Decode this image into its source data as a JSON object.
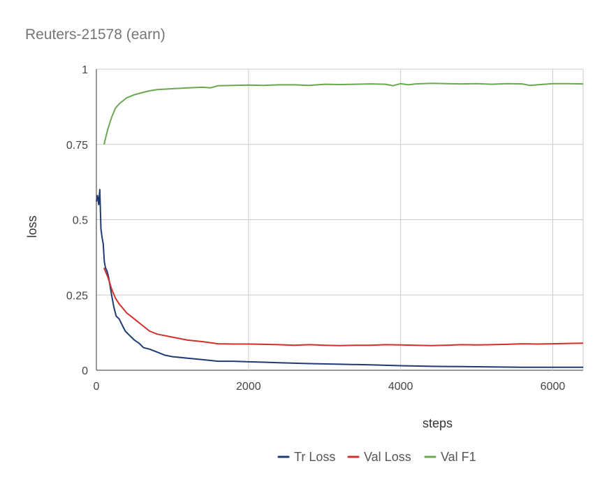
{
  "chart_data": {
    "type": "line",
    "title": "Reuters-21578 (earn)",
    "xlabel": "steps",
    "ylabel": "loss",
    "xlim": [
      0,
      6400
    ],
    "ylim": [
      0,
      1
    ],
    "x_ticks": [
      0,
      2000,
      4000,
      6000
    ],
    "x_tick_labels": [
      "0",
      "2000",
      "4000",
      "6000"
    ],
    "y_ticks": [
      0,
      0.25,
      0.5,
      0.75,
      1
    ],
    "y_tick_labels": [
      "0",
      "0.25",
      "0.5",
      "0.75",
      "1"
    ],
    "grid": true,
    "legend_position": "bottom",
    "series": [
      {
        "name": "Tr Loss",
        "color": "#1f3b73",
        "points": [
          [
            0,
            0.56
          ],
          [
            15,
            0.58
          ],
          [
            30,
            0.55
          ],
          [
            45,
            0.6
          ],
          [
            60,
            0.47
          ],
          [
            75,
            0.44
          ],
          [
            90,
            0.42
          ],
          [
            105,
            0.36
          ],
          [
            120,
            0.34
          ],
          [
            140,
            0.33
          ],
          [
            160,
            0.31
          ],
          [
            180,
            0.28
          ],
          [
            200,
            0.25
          ],
          [
            230,
            0.21
          ],
          [
            260,
            0.18
          ],
          [
            300,
            0.17
          ],
          [
            340,
            0.15
          ],
          [
            380,
            0.13
          ],
          [
            420,
            0.12
          ],
          [
            460,
            0.11
          ],
          [
            500,
            0.1
          ],
          [
            560,
            0.09
          ],
          [
            620,
            0.075
          ],
          [
            700,
            0.07
          ],
          [
            800,
            0.06
          ],
          [
            900,
            0.05
          ],
          [
            1000,
            0.045
          ],
          [
            1200,
            0.04
          ],
          [
            1400,
            0.035
          ],
          [
            1600,
            0.03
          ],
          [
            1800,
            0.03
          ],
          [
            2000,
            0.028
          ],
          [
            2400,
            0.025
          ],
          [
            2800,
            0.022
          ],
          [
            3200,
            0.02
          ],
          [
            3600,
            0.018
          ],
          [
            4000,
            0.015
          ],
          [
            4400,
            0.013
          ],
          [
            4800,
            0.012
          ],
          [
            5200,
            0.011
          ],
          [
            5600,
            0.01
          ],
          [
            6000,
            0.01
          ],
          [
            6400,
            0.01
          ]
        ]
      },
      {
        "name": "Val Loss",
        "color": "#d1302c",
        "points": [
          [
            100,
            0.34
          ],
          [
            150,
            0.31
          ],
          [
            200,
            0.27
          ],
          [
            250,
            0.24
          ],
          [
            300,
            0.22
          ],
          [
            400,
            0.19
          ],
          [
            500,
            0.17
          ],
          [
            600,
            0.15
          ],
          [
            700,
            0.13
          ],
          [
            800,
            0.12
          ],
          [
            1000,
            0.11
          ],
          [
            1200,
            0.1
          ],
          [
            1400,
            0.095
          ],
          [
            1600,
            0.088
          ],
          [
            1800,
            0.087
          ],
          [
            2000,
            0.087
          ],
          [
            2200,
            0.086
          ],
          [
            2400,
            0.085
          ],
          [
            2600,
            0.083
          ],
          [
            2800,
            0.085
          ],
          [
            3000,
            0.083
          ],
          [
            3200,
            0.082
          ],
          [
            3400,
            0.083
          ],
          [
            3600,
            0.083
          ],
          [
            3800,
            0.085
          ],
          [
            4000,
            0.084
          ],
          [
            4200,
            0.083
          ],
          [
            4400,
            0.082
          ],
          [
            4600,
            0.083
          ],
          [
            4800,
            0.085
          ],
          [
            5000,
            0.084
          ],
          [
            5200,
            0.085
          ],
          [
            5400,
            0.086
          ],
          [
            5600,
            0.088
          ],
          [
            5800,
            0.087
          ],
          [
            6000,
            0.088
          ],
          [
            6200,
            0.089
          ],
          [
            6400,
            0.09
          ]
        ]
      },
      {
        "name": "Val F1",
        "color": "#6aa84f",
        "points": [
          [
            100,
            0.75
          ],
          [
            150,
            0.8
          ],
          [
            200,
            0.84
          ],
          [
            250,
            0.87
          ],
          [
            300,
            0.885
          ],
          [
            400,
            0.905
          ],
          [
            500,
            0.915
          ],
          [
            600,
            0.922
          ],
          [
            700,
            0.928
          ],
          [
            800,
            0.932
          ],
          [
            1000,
            0.935
          ],
          [
            1200,
            0.938
          ],
          [
            1400,
            0.94
          ],
          [
            1500,
            0.938
          ],
          [
            1600,
            0.945
          ],
          [
            1800,
            0.946
          ],
          [
            2000,
            0.947
          ],
          [
            2200,
            0.946
          ],
          [
            2400,
            0.948
          ],
          [
            2600,
            0.948
          ],
          [
            2800,
            0.946
          ],
          [
            3000,
            0.95
          ],
          [
            3200,
            0.949
          ],
          [
            3400,
            0.95
          ],
          [
            3600,
            0.951
          ],
          [
            3800,
            0.95
          ],
          [
            3900,
            0.945
          ],
          [
            4000,
            0.952
          ],
          [
            4100,
            0.948
          ],
          [
            4200,
            0.951
          ],
          [
            4400,
            0.953
          ],
          [
            4600,
            0.952
          ],
          [
            4800,
            0.951
          ],
          [
            5000,
            0.952
          ],
          [
            5200,
            0.95
          ],
          [
            5400,
            0.952
          ],
          [
            5600,
            0.951
          ],
          [
            5700,
            0.946
          ],
          [
            5800,
            0.948
          ],
          [
            6000,
            0.952
          ],
          [
            6200,
            0.952
          ],
          [
            6400,
            0.951
          ]
        ]
      }
    ]
  }
}
